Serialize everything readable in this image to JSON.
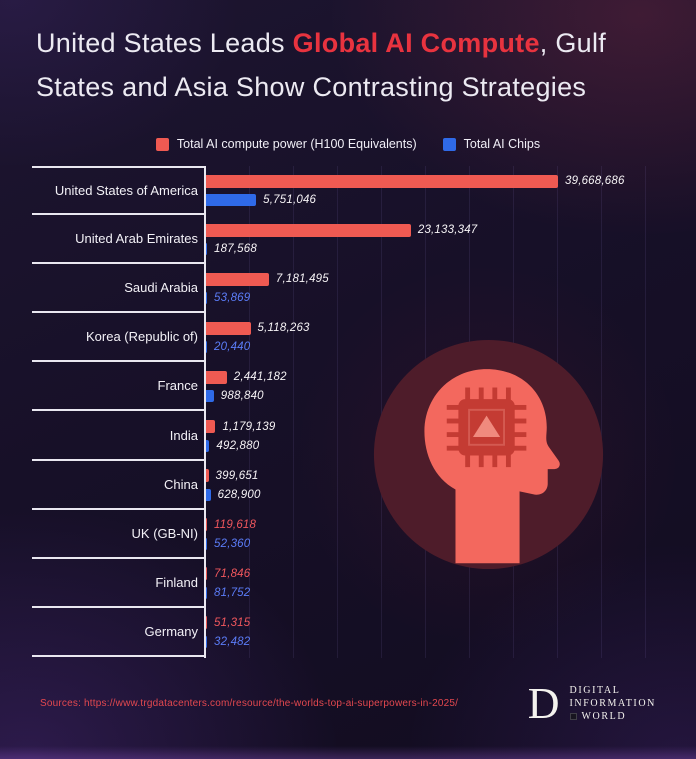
{
  "title": {
    "part1": "United States Leads ",
    "highlight": "Global AI Compute",
    "part2": ", Gulf",
    "line2": "States and Asia Show Contrasting Strategies"
  },
  "legend": {
    "compute": {
      "label": "Total AI compute power (H100 Equivalents)",
      "color": "#ef5a52"
    },
    "chips": {
      "label": "Total AI Chips",
      "color": "#2f6ae8"
    }
  },
  "colors": {
    "bar_red": "#ef5a52",
    "bar_blue": "#2f6ae8",
    "value_white": "#f7f4f6",
    "value_red": "#f0575d",
    "value_blue": "#5b7cf7",
    "title_highlight": "#e8333f"
  },
  "chart_data": {
    "type": "bar",
    "orientation": "horizontal",
    "xmax": 39668686,
    "xlim": [
      0,
      40000000
    ],
    "grid": "faint-vertical-lines",
    "legend_position": "top-center",
    "categories": [
      "United States of America",
      "United Arab Emirates",
      "Saudi Arabia",
      "Korea (Republic of)",
      "France",
      "India",
      "China",
      "UK (GB-NI)",
      "Finland",
      "Germany"
    ],
    "series": [
      {
        "name": "Total AI compute power (H100 Equivalents)",
        "color": "#ef5a52",
        "values": [
          39668686,
          23133347,
          7181495,
          5118263,
          2441182,
          1179139,
          399651,
          119618,
          71846,
          51315
        ]
      },
      {
        "name": "Total AI Chips",
        "color": "#2f6ae8",
        "values": [
          5751046,
          187568,
          53869,
          20440,
          988840,
          492880,
          628900,
          52360,
          81752,
          32482
        ]
      }
    ],
    "rows": [
      {
        "country": "United States of America",
        "compute": 39668686,
        "compute_label": "39,668,686",
        "compute_color": "#f7f4f6",
        "chips": 5751046,
        "chips_label": "5,751,046",
        "chips_color": "#f7f4f6"
      },
      {
        "country": "United Arab Emirates",
        "compute": 23133347,
        "compute_label": "23,133,347",
        "compute_color": "#f7f4f6",
        "chips": 187568,
        "chips_label": "187,568",
        "chips_color": "#f7f4f6"
      },
      {
        "country": "Saudi Arabia",
        "compute": 7181495,
        "compute_label": "7,181,495",
        "compute_color": "#f7f4f6",
        "chips": 53869,
        "chips_label": "53,869",
        "chips_color": "#5b7cf7"
      },
      {
        "country": "Korea (Republic of)",
        "compute": 5118263,
        "compute_label": "5,118,263",
        "compute_color": "#f7f4f6",
        "chips": 20440,
        "chips_label": "20,440",
        "chips_color": "#5b7cf7"
      },
      {
        "country": "France",
        "compute": 2441182,
        "compute_label": "2,441,182",
        "compute_color": "#f7f4f6",
        "chips": 988840,
        "chips_label": "988,840",
        "chips_color": "#f7f4f6"
      },
      {
        "country": "India",
        "compute": 1179139,
        "compute_label": "1,179,139",
        "compute_color": "#f7f4f6",
        "chips": 492880,
        "chips_label": "492,880",
        "chips_color": "#f7f4f6"
      },
      {
        "country": "China",
        "compute": 399651,
        "compute_label": "399,651",
        "compute_color": "#f7f4f6",
        "chips": 628900,
        "chips_label": "628,900",
        "chips_color": "#f7f4f6"
      },
      {
        "country": "UK (GB-NI)",
        "compute": 119618,
        "compute_label": "119,618",
        "compute_color": "#f0575d",
        "chips": 52360,
        "chips_label": "52,360",
        "chips_color": "#5b7cf7"
      },
      {
        "country": "Finland",
        "compute": 71846,
        "compute_label": "71,846",
        "compute_color": "#f0575d",
        "chips": 81752,
        "chips_label": "81,752",
        "chips_color": "#5b7cf7"
      },
      {
        "country": "Germany",
        "compute": 51315,
        "compute_label": "51,315",
        "compute_color": "#f0575d",
        "chips": 32482,
        "chips_label": "32,482",
        "chips_color": "#5b7cf7"
      }
    ]
  },
  "illustration": {
    "name": "head-with-microchip",
    "circle_color": "#4e1c2a",
    "head_color": "#f3685e",
    "chip_color": "#c43b33"
  },
  "footer": {
    "source": "Sources: https://www.trgdatacenters.com/resource/the-worlds-top-ai-superpowers-in-2025/",
    "logo": {
      "letter": "D",
      "line1": "DIGITAL",
      "line2": "INFORMATION",
      "line3": "WORLD"
    }
  }
}
